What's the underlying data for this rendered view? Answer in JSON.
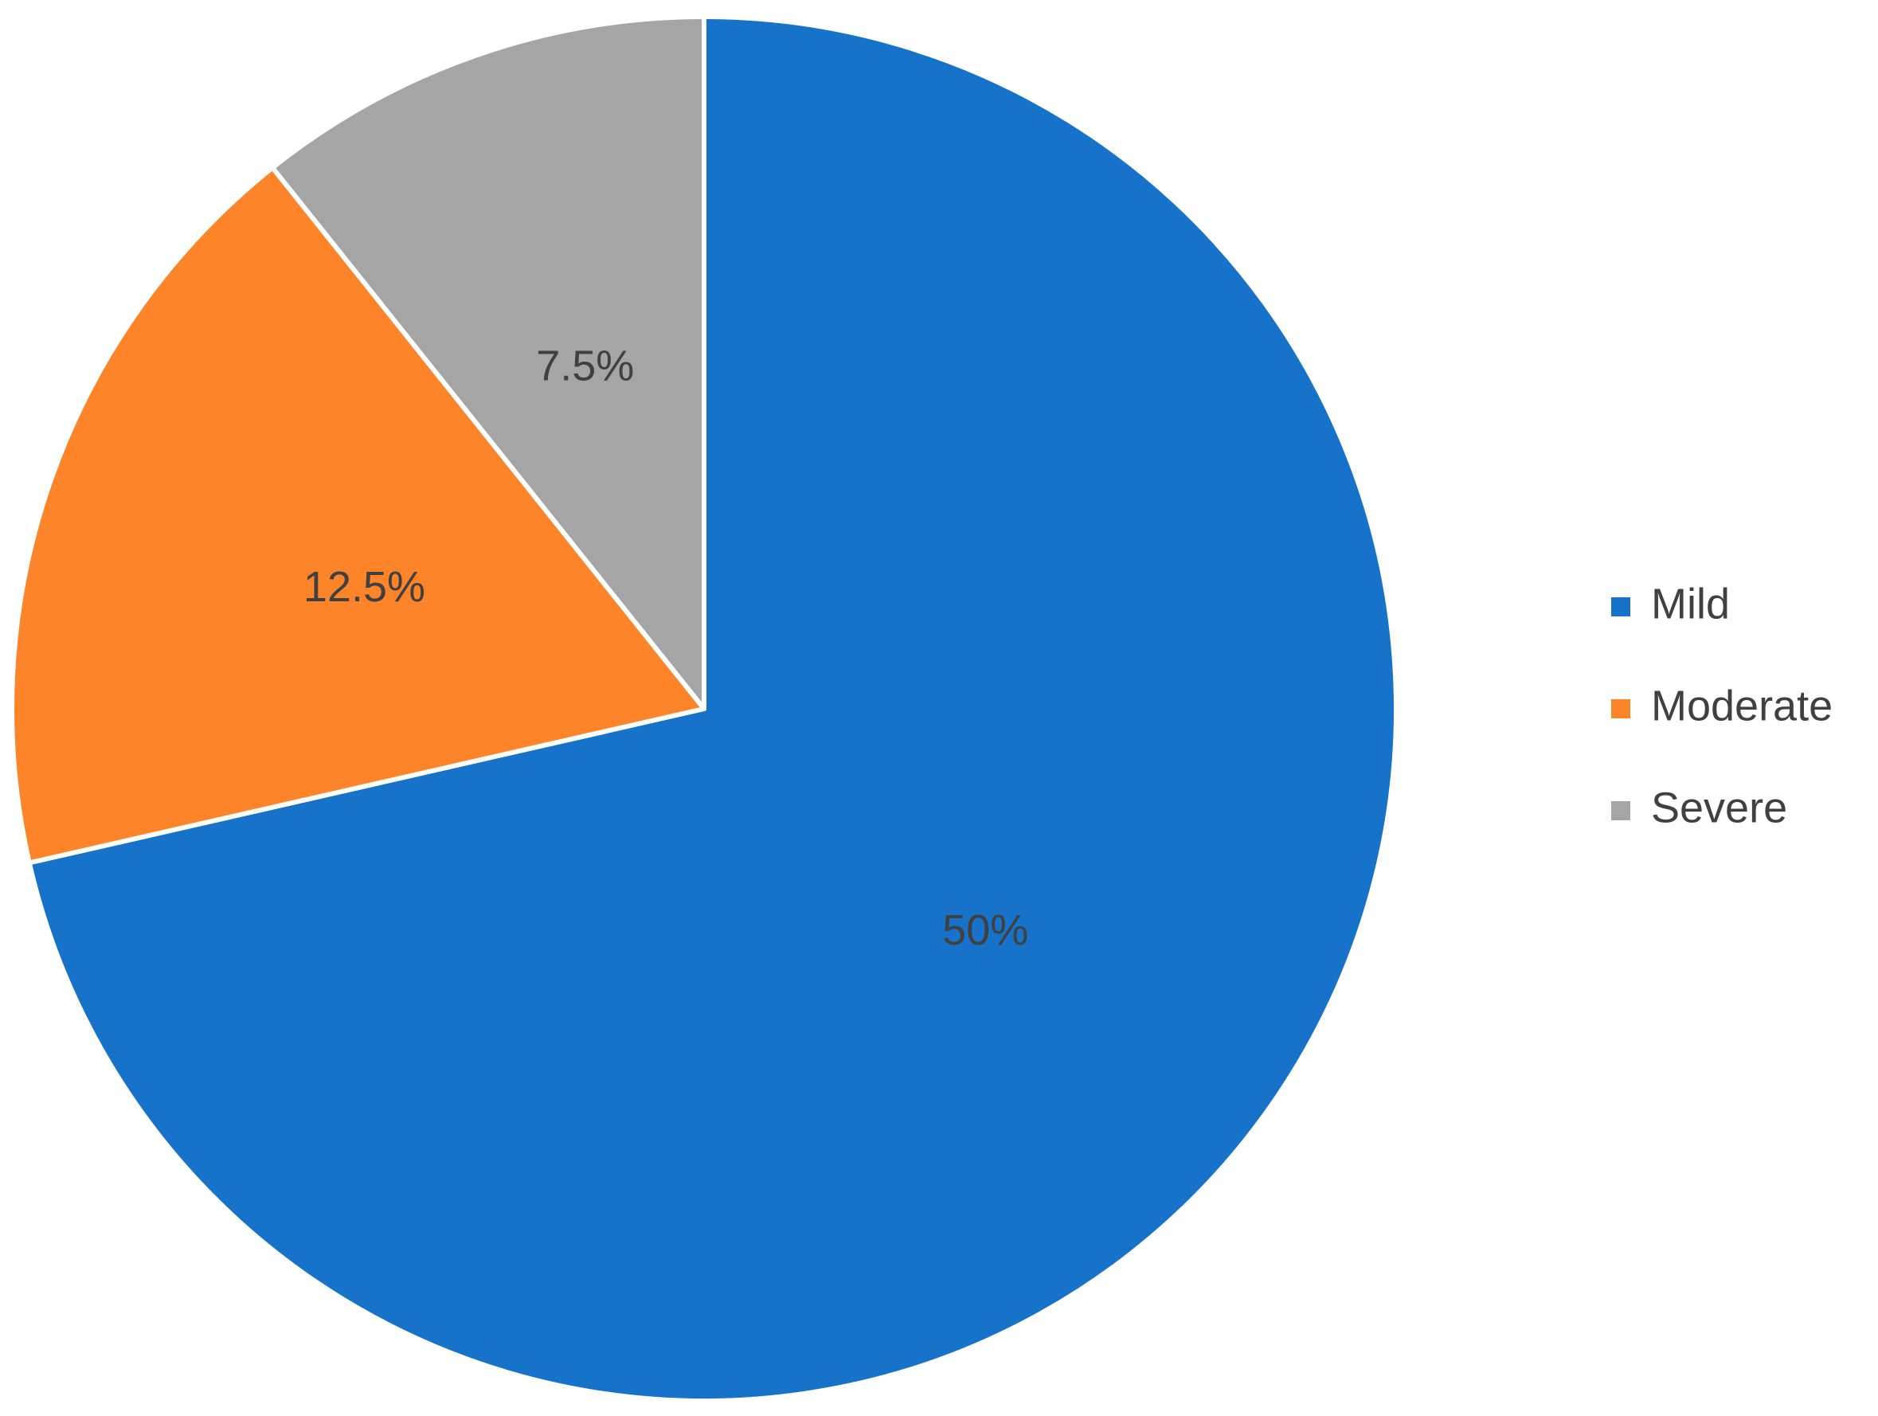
{
  "chart_data": {
    "type": "pie",
    "categories": [
      "Mild",
      "Moderate",
      "Severe"
    ],
    "values": [
      50,
      12.5,
      7.5
    ],
    "value_labels": [
      "50%",
      "12.5%",
      "7.5%"
    ],
    "colors": [
      "#1673c9",
      "#fd8428",
      "#a5a5a5"
    ],
    "legend": "right"
  }
}
